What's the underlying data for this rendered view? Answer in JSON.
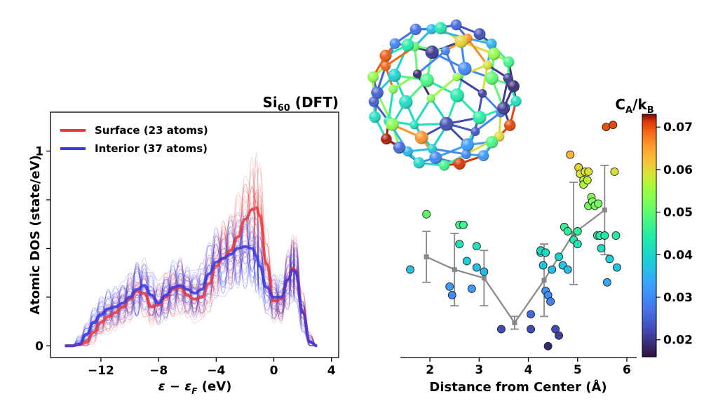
{
  "chart_data": [
    {
      "type": "line",
      "title_main": "Si",
      "title_sub": "60",
      "title_tail": " (DFT)",
      "xlabel_eps": "ε − ε",
      "xlabel_sub": "F",
      "xlabel_unit": " (eV)",
      "ylabel": "Atomic DOS (state/eV)",
      "xlim": [
        -15.5,
        4.5
      ],
      "ylim": [
        -0.06,
        1.2
      ],
      "xticks": [
        -12,
        -8,
        -4,
        0,
        4
      ],
      "xtick_labels": [
        "−12",
        "−8",
        "−4",
        "0",
        "4"
      ],
      "yticks": [
        0,
        0.25,
        0.5,
        0.75,
        1
      ],
      "ytick_labels": [
        "0",
        "",
        "",
        "",
        "1"
      ],
      "legend_position": "top-left",
      "series": [
        {
          "name": "Surface (23 atoms)",
          "color": "#e8393e",
          "x": [
            -14.5,
            -14,
            -13.5,
            -13,
            -12.5,
            -12,
            -11.5,
            -11,
            -10.5,
            -10,
            -9.5,
            -9,
            -8.5,
            -8,
            -7.5,
            -7,
            -6.5,
            -6,
            -5.5,
            -5,
            -4.5,
            -4,
            -3.5,
            -3,
            -2.5,
            -2,
            -1.5,
            -1.2,
            -1,
            -0.5,
            0,
            0.5,
            1,
            1.3,
            1.5,
            2,
            2.5,
            3
          ],
          "y": [
            0,
            0,
            0.005,
            0.02,
            0.07,
            0.12,
            0.15,
            0.17,
            0.2,
            0.24,
            0.28,
            0.27,
            0.2,
            0.21,
            0.25,
            0.29,
            0.3,
            0.26,
            0.24,
            0.25,
            0.32,
            0.41,
            0.45,
            0.49,
            0.56,
            0.65,
            0.7,
            0.71,
            0.67,
            0.42,
            0.23,
            0.24,
            0.34,
            0.4,
            0.39,
            0.18,
            0.02,
            0
          ]
        },
        {
          "name": "Interior (37 atoms)",
          "color": "#3a3ae0",
          "x": [
            -14.5,
            -14,
            -13.5,
            -13,
            -12.5,
            -12,
            -11.5,
            -11,
            -10.5,
            -10,
            -9.5,
            -9,
            -8.5,
            -8,
            -7.5,
            -7,
            -6.5,
            -6,
            -5.5,
            -5,
            -4.5,
            -4,
            -3.5,
            -3,
            -2.5,
            -2,
            -1.5,
            -1.2,
            -1,
            -0.5,
            0,
            0.5,
            1,
            1.3,
            1.5,
            2,
            2.5,
            3
          ],
          "y": [
            0,
            0,
            0.01,
            0.06,
            0.12,
            0.16,
            0.19,
            0.2,
            0.22,
            0.25,
            0.29,
            0.31,
            0.26,
            0.22,
            0.26,
            0.3,
            0.31,
            0.29,
            0.27,
            0.29,
            0.37,
            0.43,
            0.45,
            0.47,
            0.5,
            0.51,
            0.5,
            0.46,
            0.41,
            0.3,
            0.25,
            0.25,
            0.34,
            0.39,
            0.38,
            0.17,
            0.02,
            0
          ]
        }
      ]
    },
    {
      "type": "scatter",
      "xlabel": "Distance from Center (Å)",
      "xlim": [
        1.4,
        6.2
      ],
      "ylim": [
        0.016,
        0.073
      ],
      "xticks": [
        2,
        3,
        4,
        5,
        6
      ],
      "colorbar": {
        "label_main": "C",
        "label_sub_a": "A",
        "label_mid": "/k",
        "label_sub_b": "B",
        "ticks": [
          0.02,
          0.03,
          0.04,
          0.05,
          0.06,
          0.07
        ],
        "tick_labels": [
          "0.02",
          "0.03",
          "0.04",
          "0.05",
          "0.06",
          "0.07"
        ],
        "range": [
          0.016,
          0.073
        ],
        "colormap": "turbo"
      },
      "points": [
        {
          "x": 1.6,
          "y": 0.0365
        },
        {
          "x": 1.93,
          "y": 0.0495
        },
        {
          "x": 2.4,
          "y": 0.0325
        },
        {
          "x": 2.45,
          "y": 0.0305
        },
        {
          "x": 2.6,
          "y": 0.047
        },
        {
          "x": 2.68,
          "y": 0.047
        },
        {
          "x": 2.6,
          "y": 0.0425
        },
        {
          "x": 2.75,
          "y": 0.0385
        },
        {
          "x": 2.85,
          "y": 0.032
        },
        {
          "x": 2.95,
          "y": 0.037
        },
        {
          "x": 2.95,
          "y": 0.042
        },
        {
          "x": 3.1,
          "y": 0.036
        },
        {
          "x": 3.45,
          "y": 0.0225
        },
        {
          "x": 4.05,
          "y": 0.026
        },
        {
          "x": 4.05,
          "y": 0.0225
        },
        {
          "x": 4.25,
          "y": 0.0405
        },
        {
          "x": 4.25,
          "y": 0.041
        },
        {
          "x": 4.3,
          "y": 0.0375
        },
        {
          "x": 4.35,
          "y": 0.0405
        },
        {
          "x": 4.35,
          "y": 0.0315
        },
        {
          "x": 4.4,
          "y": 0.0305
        },
        {
          "x": 4.45,
          "y": 0.029
        },
        {
          "x": 4.4,
          "y": 0.0185
        },
        {
          "x": 4.48,
          "y": 0.0365
        },
        {
          "x": 4.55,
          "y": 0.0225
        },
        {
          "x": 4.62,
          "y": 0.021
        },
        {
          "x": 4.62,
          "y": 0.0395
        },
        {
          "x": 4.7,
          "y": 0.0375
        },
        {
          "x": 4.73,
          "y": 0.0465
        },
        {
          "x": 4.8,
          "y": 0.0455
        },
        {
          "x": 4.8,
          "y": 0.0365
        },
        {
          "x": 4.85,
          "y": 0.0635
        },
        {
          "x": 4.92,
          "y": 0.0435
        },
        {
          "x": 5.0,
          "y": 0.0455
        },
        {
          "x": 5.0,
          "y": 0.0425
        },
        {
          "x": 5.02,
          "y": 0.0605
        },
        {
          "x": 5.05,
          "y": 0.059
        },
        {
          "x": 5.12,
          "y": 0.0575
        },
        {
          "x": 5.12,
          "y": 0.0565
        },
        {
          "x": 5.15,
          "y": 0.0595
        },
        {
          "x": 5.2,
          "y": 0.0575
        },
        {
          "x": 5.22,
          "y": 0.0595
        },
        {
          "x": 5.22,
          "y": 0.0515
        },
        {
          "x": 5.28,
          "y": 0.0535
        },
        {
          "x": 5.3,
          "y": 0.0525
        },
        {
          "x": 5.35,
          "y": 0.0515
        },
        {
          "x": 5.4,
          "y": 0.0445
        },
        {
          "x": 5.42,
          "y": 0.052
        },
        {
          "x": 5.45,
          "y": 0.0445
        },
        {
          "x": 5.48,
          "y": 0.0415
        },
        {
          "x": 5.55,
          "y": 0.0445
        },
        {
          "x": 5.58,
          "y": 0.07
        },
        {
          "x": 5.6,
          "y": 0.0335
        },
        {
          "x": 5.65,
          "y": 0.039
        },
        {
          "x": 5.72,
          "y": 0.0705
        },
        {
          "x": 5.75,
          "y": 0.0595
        },
        {
          "x": 5.78,
          "y": 0.0445
        },
        {
          "x": 5.8,
          "y": 0.037
        }
      ],
      "mean_line": {
        "color": "#888888",
        "x": [
          1.93,
          2.5,
          3.1,
          3.72,
          4.32,
          4.92,
          5.55
        ],
        "y": [
          0.0395,
          0.0365,
          0.0345,
          0.024,
          0.034,
          0.045,
          0.0505
        ],
        "err": [
          0.006,
          0.0085,
          0.0065,
          0.0015,
          0.0085,
          0.012,
          0.0105
        ]
      }
    }
  ]
}
